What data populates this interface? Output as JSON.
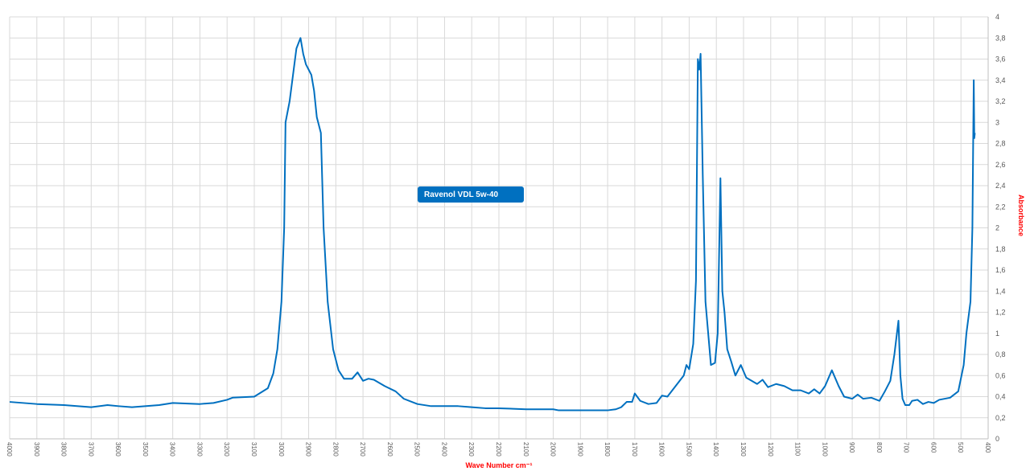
{
  "chart_data": {
    "type": "line",
    "x_label": "Wave Number cm⁻¹",
    "y_label": "Absorbance",
    "annotation": "Ravenol VDL 5w-40",
    "color": "#0070c0",
    "grid": true,
    "xlim": [
      4000,
      400
    ],
    "ylim": [
      0,
      4
    ],
    "xticks": [
      4000,
      3900,
      3800,
      3700,
      3600,
      3500,
      3400,
      3300,
      3200,
      3100,
      3000,
      2900,
      2800,
      2700,
      2600,
      2500,
      2400,
      2300,
      2200,
      2100,
      2000,
      1900,
      1800,
      1700,
      1600,
      1500,
      1400,
      1300,
      1200,
      1100,
      1000,
      900,
      800,
      700,
      600,
      500,
      400
    ],
    "yticks": [
      0,
      {
        "value": 0.2,
        "label": "0,2"
      },
      {
        "value": 0.4,
        "label": "0,4"
      },
      {
        "value": 0.6,
        "label": "0,6"
      },
      {
        "value": 0.8,
        "label": "0,8"
      },
      1,
      {
        "value": 1.2,
        "label": "1,2"
      },
      {
        "value": 1.4,
        "label": "1,4"
      },
      {
        "value": 1.6,
        "label": "1,6"
      },
      {
        "value": 1.8,
        "label": "1,8"
      },
      2,
      {
        "value": 2.2,
        "label": "2,2"
      },
      {
        "value": 2.4,
        "label": "2,4"
      },
      {
        "value": 2.6,
        "label": "2,6"
      },
      {
        "value": 2.8,
        "label": "2,8"
      },
      3,
      {
        "value": 3.2,
        "label": "3,2"
      },
      {
        "value": 3.4,
        "label": "3,4"
      },
      {
        "value": 3.6,
        "label": "3,6"
      },
      {
        "value": 3.8,
        "label": "3,8"
      },
      4
    ],
    "x": [
      4000,
      3900,
      3800,
      3700,
      3640,
      3600,
      3550,
      3450,
      3400,
      3300,
      3250,
      3200,
      3180,
      3100,
      3050,
      3030,
      3015,
      3000,
      2990,
      2985,
      2970,
      2955,
      2945,
      2930,
      2920,
      2910,
      2900,
      2890,
      2880,
      2870,
      2855,
      2845,
      2830,
      2810,
      2790,
      2770,
      2740,
      2720,
      2700,
      2680,
      2660,
      2620,
      2580,
      2550,
      2500,
      2450,
      2400,
      2350,
      2300,
      2250,
      2200,
      2100,
      2000,
      1980,
      1900,
      1800,
      1770,
      1750,
      1730,
      1710,
      1700,
      1680,
      1650,
      1620,
      1600,
      1580,
      1550,
      1520,
      1510,
      1500,
      1485,
      1475,
      1468,
      1463,
      1458,
      1450,
      1440,
      1420,
      1405,
      1395,
      1385,
      1378,
      1370,
      1360,
      1345,
      1330,
      1310,
      1290,
      1250,
      1230,
      1210,
      1180,
      1150,
      1120,
      1090,
      1060,
      1040,
      1020,
      1000,
      975,
      950,
      930,
      900,
      880,
      860,
      830,
      800,
      780,
      760,
      745,
      730,
      723,
      715,
      705,
      690,
      680,
      660,
      640,
      620,
      600,
      580,
      540,
      510,
      490,
      480,
      465,
      458,
      453,
      451,
      449
    ],
    "values": [
      0.35,
      0.33,
      0.32,
      0.3,
      0.32,
      0.31,
      0.3,
      0.32,
      0.34,
      0.33,
      0.34,
      0.37,
      0.39,
      0.4,
      0.48,
      0.62,
      0.85,
      1.3,
      2.0,
      3.0,
      3.2,
      3.5,
      3.7,
      3.8,
      3.65,
      3.55,
      3.5,
      3.45,
      3.3,
      3.05,
      2.9,
      2.0,
      1.3,
      0.85,
      0.65,
      0.57,
      0.57,
      0.63,
      0.55,
      0.57,
      0.56,
      0.5,
      0.45,
      0.38,
      0.33,
      0.31,
      0.31,
      0.31,
      0.3,
      0.29,
      0.29,
      0.28,
      0.28,
      0.27,
      0.27,
      0.27,
      0.28,
      0.3,
      0.35,
      0.35,
      0.43,
      0.36,
      0.33,
      0.34,
      0.41,
      0.4,
      0.5,
      0.6,
      0.7,
      0.66,
      0.9,
      1.5,
      3.6,
      3.5,
      3.65,
      2.5,
      1.3,
      0.7,
      0.72,
      1.0,
      2.47,
      1.4,
      1.2,
      0.85,
      0.73,
      0.6,
      0.7,
      0.58,
      0.52,
      0.56,
      0.49,
      0.52,
      0.5,
      0.46,
      0.46,
      0.43,
      0.47,
      0.43,
      0.5,
      0.65,
      0.5,
      0.4,
      0.38,
      0.42,
      0.38,
      0.39,
      0.36,
      0.45,
      0.55,
      0.8,
      1.12,
      0.6,
      0.38,
      0.32,
      0.32,
      0.36,
      0.37,
      0.33,
      0.35,
      0.34,
      0.37,
      0.39,
      0.45,
      0.7,
      1.0,
      1.3,
      2.0,
      3.4,
      2.85,
      2.9
    ]
  }
}
